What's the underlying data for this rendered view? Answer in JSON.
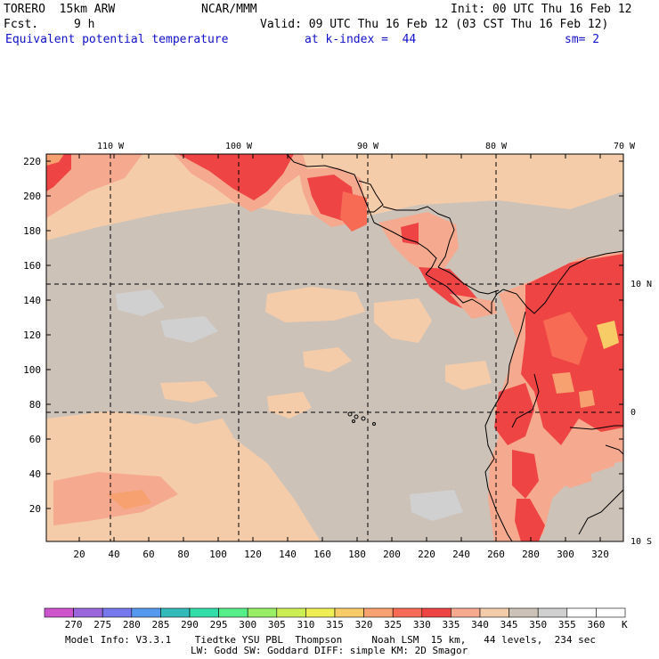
{
  "header": {
    "model": "TORERO  15km ARW",
    "org": "NCAR/MMM",
    "init": "Init: 00 UTC Thu 16 Feb 12",
    "fcst_label": "Fcst.",
    "fcst_value": "9 h",
    "valid": "Valid: 09 UTC Thu 16 Feb 12 (03 CST Thu 16 Feb 12)",
    "field": "Equivalent potential temperature",
    "level": "at k-index =  44",
    "smoothing": "sm= 2"
  },
  "map": {
    "top_lon_labels": [
      "110 W",
      "100 W",
      "90 W",
      "80 W",
      "70 W"
    ],
    "right_lat_labels": [
      "10 N",
      "0",
      "10 S"
    ],
    "left_grid_labels": [
      "220",
      "200",
      "180",
      "160",
      "140",
      "120",
      "100",
      "80",
      "60",
      "40",
      "20"
    ],
    "bottom_grid_labels": [
      "20",
      "40",
      "60",
      "80",
      "100",
      "120",
      "140",
      "160",
      "180",
      "200",
      "220",
      "240",
      "260",
      "280",
      "300",
      "320"
    ]
  },
  "colorbar": {
    "unit": "K",
    "labels": [
      "270",
      "275",
      "280",
      "285",
      "290",
      "295",
      "300",
      "305",
      "310",
      "315",
      "320",
      "325",
      "330",
      "335",
      "340",
      "345",
      "350",
      "355",
      "360"
    ],
    "colors": [
      "#cc55cc",
      "#9966dd",
      "#7777ee",
      "#5599ee",
      "#33bbbb",
      "#33ddaa",
      "#55ee88",
      "#99ee66",
      "#ccee55",
      "#eeee55",
      "#f7cc66",
      "#f7a070",
      "#f76b55",
      "#ee4444",
      "#f5aa90",
      "#f5ccaa",
      "#ccc2b8",
      "#d0d0d0",
      "#ffffff",
      "#ffffff"
    ]
  },
  "footer": {
    "line1": "Model Info: V3.3.1    Tiedtke YSU PBL  Thompson     Noah LSM  15 km,   44 levels,  234 sec",
    "line2": "LW: Godd SW: Goddard DIFF: simple KM: 2D Smagor"
  }
}
